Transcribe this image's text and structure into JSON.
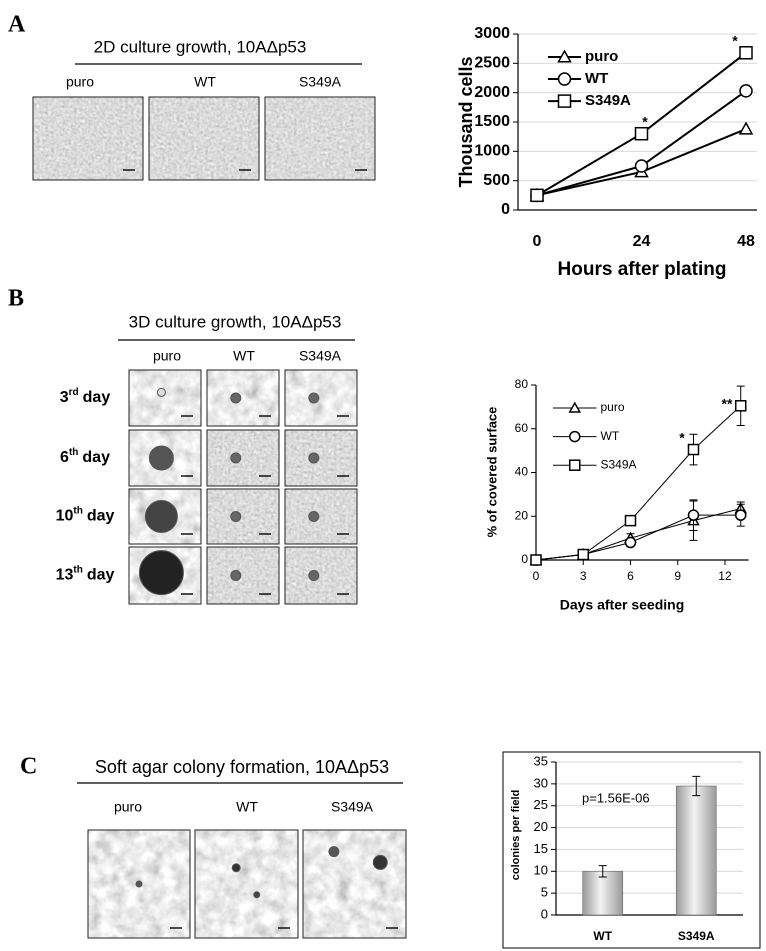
{
  "panels": [
    {
      "label": "A",
      "title": "2D culture growth, 10AΔp53",
      "captions": [
        "puro",
        "WT",
        "S349A"
      ]
    },
    {
      "label": "B",
      "title": "3D culture growth, 10AΔp53",
      "captions": [
        "puro",
        "WT",
        "S349A"
      ],
      "rows": [
        {
          "number": "3",
          "suffix": "rd",
          "unit": "day"
        },
        {
          "number": "6",
          "suffix": "th",
          "unit": "day"
        },
        {
          "number": "10",
          "suffix": "th",
          "unit": "day"
        },
        {
          "number": "13",
          "suffix": "th",
          "unit": "day"
        }
      ]
    },
    {
      "label": "C",
      "title": "Soft agar colony formation, 10AΔp53",
      "captions": [
        "puro",
        "WT",
        "S349A"
      ]
    }
  ],
  "chart_data": [
    {
      "type": "line",
      "categories": [
        "0",
        "24",
        "48"
      ],
      "series": [
        {
          "name": "puro",
          "color": "#000000",
          "marker": "triangle",
          "values": [
            250,
            650,
            1380
          ]
        },
        {
          "name": "WT",
          "color": "#000000",
          "marker": "circle",
          "values": [
            250,
            750,
            2030
          ]
        },
        {
          "name": "S349A",
          "color": "#000000",
          "marker": "square",
          "values": [
            250,
            1300,
            2680
          ]
        }
      ],
      "ylim": [
        0,
        3000
      ],
      "yticks": [
        0,
        500,
        1000,
        1500,
        2000,
        2500,
        3000
      ],
      "grid": true,
      "y_label": "Thousand cells",
      "x_label": "Hours after plating",
      "annotations": [
        "*",
        "*"
      ],
      "legend": "upper left"
    },
    {
      "type": "line",
      "x": [
        0,
        3,
        6,
        10,
        13
      ],
      "series": [
        {
          "name": "puro",
          "color": "#000000",
          "marker": "triangle",
          "values": [
            0,
            2.5,
            10,
            18,
            23.5
          ],
          "errors": [
            0,
            0.5,
            2,
            9,
            3
          ]
        },
        {
          "name": "WT",
          "color": "#000000",
          "marker": "circle",
          "values": [
            0,
            2.5,
            8,
            20.5,
            20.5
          ],
          "errors": [
            0,
            0.5,
            1.5,
            7,
            5
          ]
        },
        {
          "name": "S349A",
          "color": "#000000",
          "marker": "square",
          "values": [
            0,
            2.5,
            18,
            50.5,
            70.5
          ],
          "errors": [
            0,
            0.5,
            2,
            7,
            9
          ]
        }
      ],
      "xlim": [
        0,
        13.5
      ],
      "xticks": [
        0,
        3,
        6,
        9,
        12
      ],
      "ylim": [
        0,
        80
      ],
      "yticks": [
        0,
        20,
        40,
        60,
        80
      ],
      "grid": false,
      "y_label": "% of covered surface",
      "x_label": "Days after seeding",
      "annotations": [
        "*",
        "**"
      ],
      "legend": "upper left"
    },
    {
      "type": "bar",
      "categories": [
        "WT",
        "S349A"
      ],
      "values": [
        10,
        29.5
      ],
      "errors": [
        1.3,
        2.2
      ],
      "color": "#9a9a9a",
      "ylim": [
        0,
        35
      ],
      "yticks": [
        0,
        5,
        10,
        15,
        20,
        25,
        30,
        35
      ],
      "grid": true,
      "y_label": "colonies per field",
      "annotations": [
        "p=1.56E-06"
      ]
    }
  ]
}
